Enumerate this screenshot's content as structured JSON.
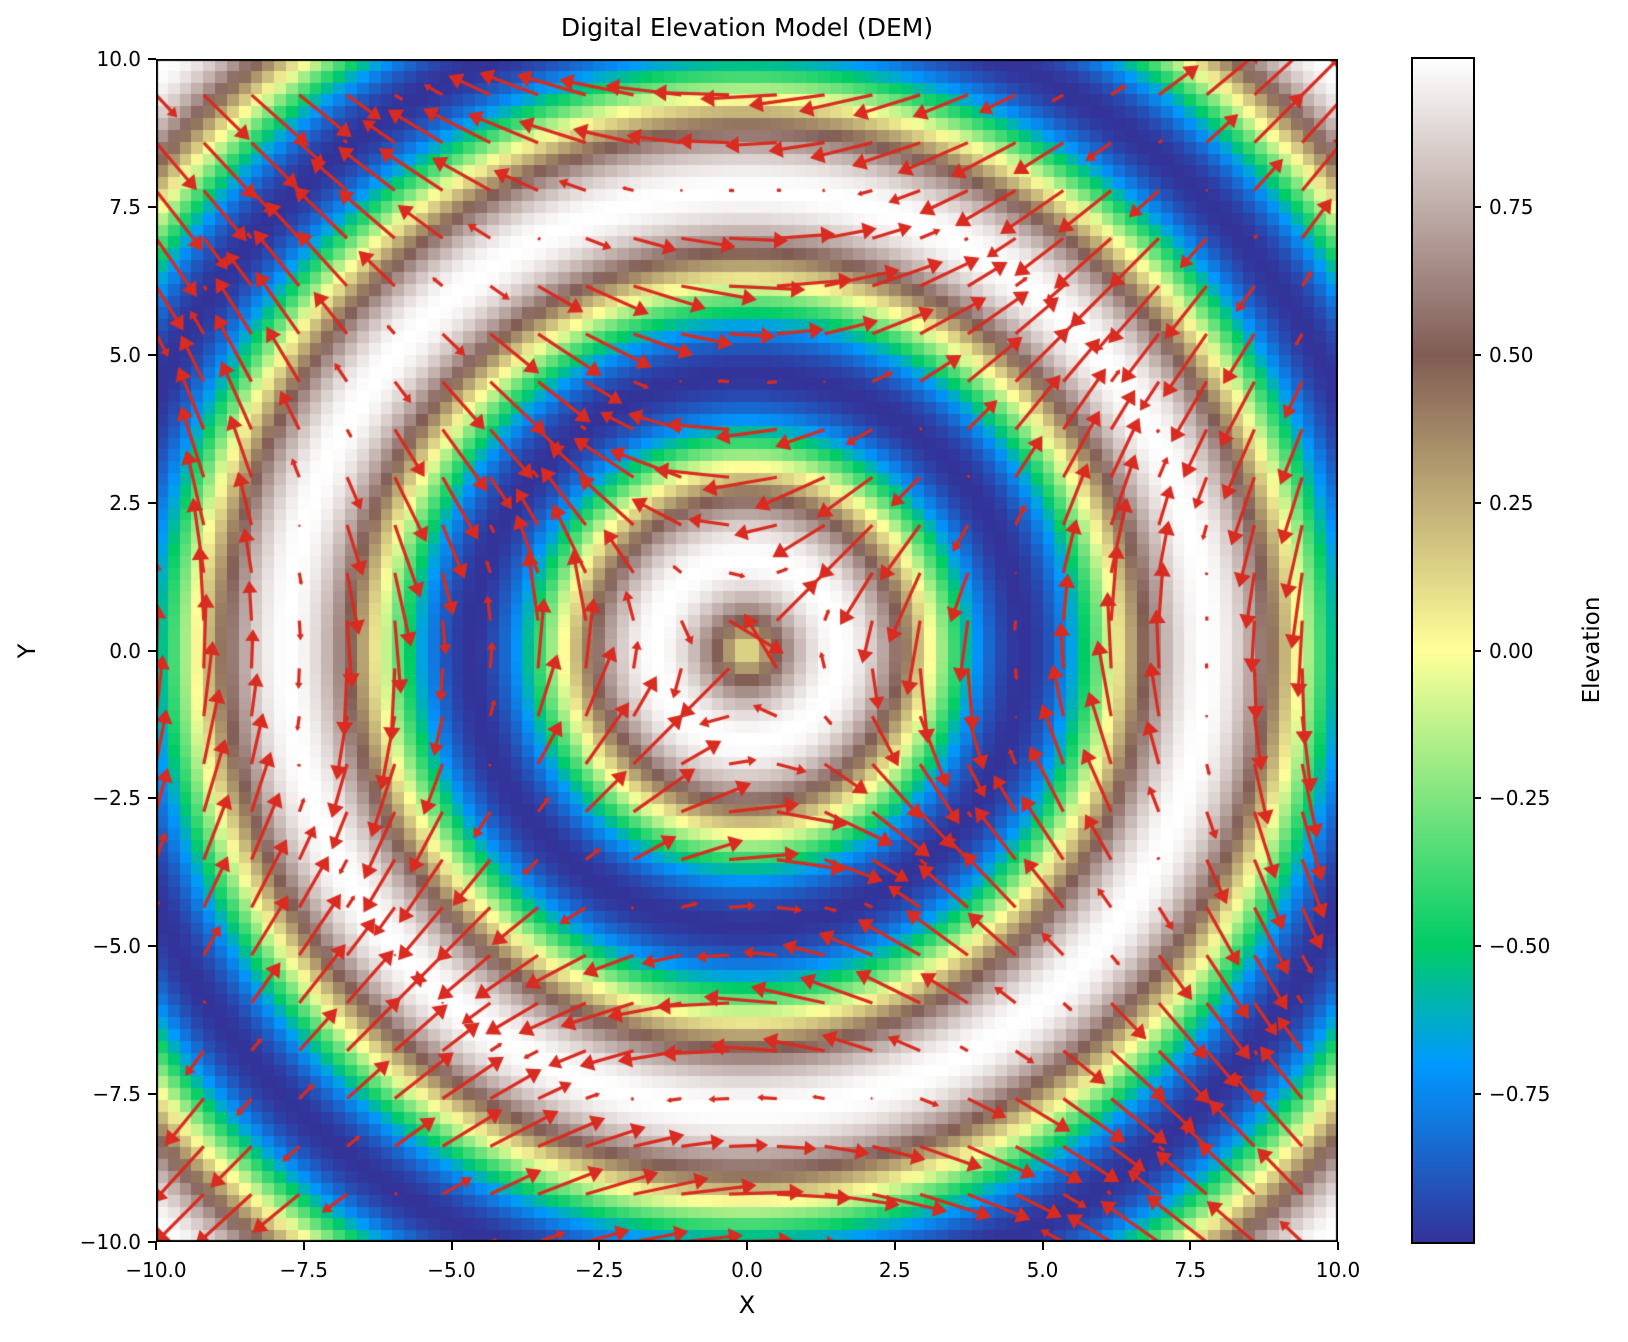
{
  "figure": {
    "title": "Digital Elevation Model (DEM)"
  },
  "axes": {
    "xlabel": "X",
    "ylabel": "Y",
    "x_tick_values": [
      -10,
      -7.5,
      -5,
      -2.5,
      0,
      2.5,
      5,
      7.5,
      10
    ],
    "x_tick_labels": [
      "−10.0",
      "−7.5",
      "−5.0",
      "−2.5",
      "0.0",
      "2.5",
      "5.0",
      "7.5",
      "10.0"
    ],
    "y_tick_values": [
      -10,
      -7.5,
      -5,
      -2.5,
      0,
      2.5,
      5,
      7.5,
      10
    ],
    "y_tick_labels": [
      "−10.0",
      "−7.5",
      "−5.0",
      "−2.5",
      "0.0",
      "2.5",
      "5.0",
      "7.5",
      "10.0"
    ]
  },
  "colorbar": {
    "label": "Elevation",
    "vmin": -1,
    "vmax": 1,
    "tick_values": [
      0.75,
      0.5,
      0.25,
      0,
      -0.25,
      -0.5,
      -0.75
    ],
    "tick_labels": [
      "0.75",
      "0.50",
      "0.25",
      "0.00",
      "−0.25",
      "−0.50",
      "−0.75"
    ]
  },
  "chart_data": {
    "type": "heatmap",
    "title": "Digital Elevation Model (DEM)",
    "xlabel": "X",
    "ylabel": "Y",
    "x_range": [
      -10,
      10
    ],
    "y_range": [
      -10,
      10
    ],
    "grid_points": 100,
    "elevation_function": "z = sin(sqrt(x^2 + y^2))",
    "zlim": [
      -1,
      1
    ],
    "grid": "off",
    "colormap": {
      "name": "terrain",
      "stops": [
        {
          "pos": 0.0,
          "color": "#333399"
        },
        {
          "pos": 0.15,
          "color": "#0099FF"
        },
        {
          "pos": 0.25,
          "color": "#00CC66"
        },
        {
          "pos": 0.5,
          "color": "#FFFF99"
        },
        {
          "pos": 0.75,
          "color": "#805C54"
        },
        {
          "pos": 1.0,
          "color": "#FFFFFF"
        }
      ]
    },
    "quiver": {
      "description": "flow arrows: u = cos(r)*y/r, v = cos(r)*x/r with r = sqrt(x^2+y^2)",
      "grid_step": 4,
      "arrows_per_axis": 25,
      "color": "#d92b20",
      "scale": 1.3
    }
  }
}
